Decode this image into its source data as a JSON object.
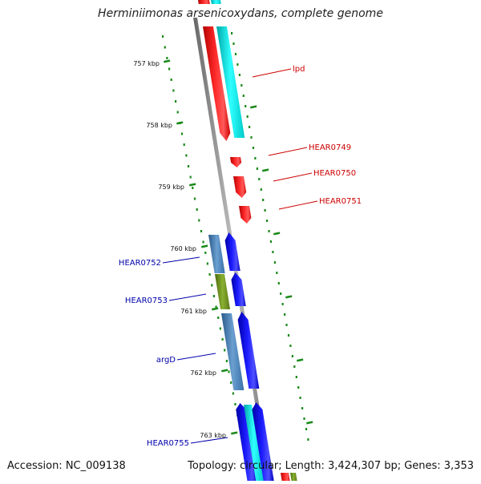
{
  "title": "Herminiimonas arsenicoxydans, complete genome",
  "footer": {
    "accession": "Accession: NC_009138",
    "topology": "Topology: circular;",
    "length": "Length: 3,424,307 bp;",
    "genes": "Genes: 3,353"
  },
  "ticks": [
    "757 kbp",
    "758 kbp",
    "759 kbp",
    "760 kbp",
    "761 kbp",
    "762 kbp",
    "763 kbp"
  ],
  "gene_labels": {
    "lpd": "lpd",
    "hear0749": "HEAR0749",
    "hear0750": "HEAR0750",
    "hear0751": "HEAR0751",
    "hear0752": "HEAR0752",
    "hear0753": "HEAR0753",
    "argd": "argD",
    "hear0755": "HEAR0755"
  },
  "colors": {
    "forward_gene": "#ff0000",
    "reverse_gene": "#0000ff",
    "forward_label": "#cc0000",
    "reverse_label": "#0000aa",
    "cds_cyan": "#00e5e5",
    "cds_steelblue": "#4682b4",
    "cds_olive": "#6b8e23",
    "backbone": "#888888",
    "gc_skew": "#1a8a1a"
  }
}
